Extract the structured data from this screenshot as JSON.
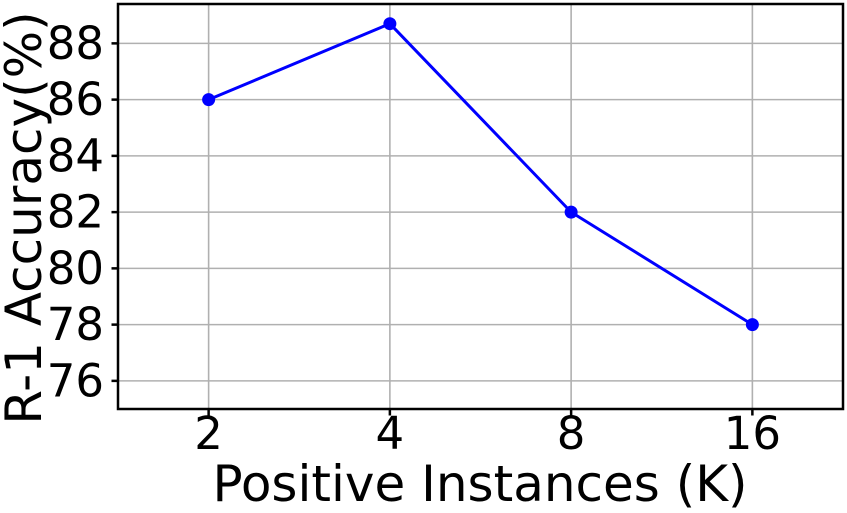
{
  "chart_data": {
    "type": "line",
    "title": "",
    "xlabel": "Positive Instances (K)",
    "ylabel": "R-1 Accuracy(%)",
    "x": [
      2,
      4,
      8,
      16
    ],
    "x_tick_labels": [
      "2",
      "4",
      "8",
      "16"
    ],
    "values": [
      86.0,
      88.7,
      82.0,
      78.0
    ],
    "yticks": [
      76,
      78,
      80,
      82,
      84,
      86,
      88
    ],
    "ylim": [
      75.0,
      89.4
    ],
    "x_scale": "log2",
    "xlim_log2": [
      0.5,
      4.5
    ],
    "grid": true,
    "legend": "none",
    "marker": "circle",
    "line_width": 3,
    "colors": {
      "line": "#0000ff",
      "marker": "#0000ff",
      "grid": "#b0b0b0",
      "axis": "#000000",
      "text": "#000000",
      "background": "#ffffff"
    }
  }
}
